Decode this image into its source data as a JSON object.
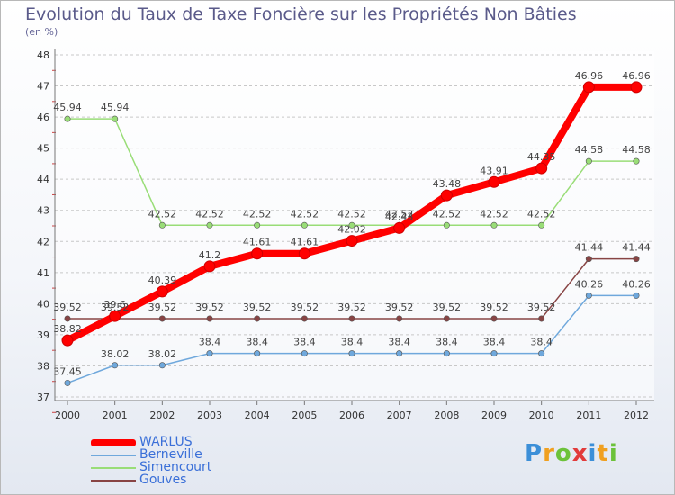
{
  "chart_data": {
    "type": "line",
    "title": "Evolution du Taux de Taxe Foncière sur les Propriétés Non Bâties",
    "ylabel": "(en %)",
    "xlabel": "",
    "categories": [
      "2000",
      "2001",
      "2002",
      "2003",
      "2004",
      "2005",
      "2006",
      "2007",
      "2008",
      "2009",
      "2010",
      "2011",
      "2012"
    ],
    "ylim": [
      37,
      48
    ],
    "yticks": [
      37,
      38,
      39,
      40,
      41,
      42,
      43,
      44,
      45,
      46,
      47,
      48
    ],
    "grid": "horizontal dashed",
    "legend_position": "bottom-left",
    "series": [
      {
        "name": "WARLUS",
        "color": "#ff0000",
        "labels": [
          "38.82",
          "39.6",
          "40.39",
          "41.2",
          "41.61",
          "41.61",
          "42.02",
          "42.43",
          "43.48",
          "43.91",
          "44.35",
          "46.96",
          "46.96"
        ],
        "values": [
          38.82,
          39.6,
          40.39,
          41.2,
          41.61,
          41.61,
          42.02,
          42.43,
          43.48,
          43.91,
          44.35,
          46.96,
          46.96
        ]
      },
      {
        "name": "Berneville",
        "color": "#6fa8dc",
        "labels": [
          "37.45",
          "38.02",
          "38.02",
          "38.4",
          "38.4",
          "38.4",
          "38.4",
          "38.4",
          "38.4",
          "38.4",
          "38.4",
          "40.26",
          "40.26"
        ],
        "values": [
          37.45,
          38.02,
          38.02,
          38.4,
          38.4,
          38.4,
          38.4,
          38.4,
          38.4,
          38.4,
          38.4,
          40.26,
          40.26
        ]
      },
      {
        "name": "Simencourt",
        "color": "#99dd77",
        "labels": [
          "45.94",
          "45.94",
          "42.52",
          "42.52",
          "42.52",
          "42.52",
          "42.52",
          "42.52",
          "42.52",
          "42.52",
          "42.52",
          "44.58",
          "44.58"
        ],
        "values": [
          45.94,
          45.94,
          42.52,
          42.52,
          42.52,
          42.52,
          42.52,
          42.52,
          42.52,
          42.52,
          42.52,
          44.58,
          44.58
        ]
      },
      {
        "name": "Gouves",
        "color": "#884444",
        "labels": [
          "39.52",
          "39.52",
          "39.52",
          "39.52",
          "39.52",
          "39.52",
          "39.52",
          "39.52",
          "39.52",
          "39.52",
          "39.52",
          "41.44",
          "41.44"
        ],
        "values": [
          39.52,
          39.52,
          39.52,
          39.52,
          39.52,
          39.52,
          39.52,
          39.52,
          39.52,
          39.52,
          39.52,
          41.44,
          41.44
        ]
      }
    ]
  },
  "legend": {
    "items": [
      {
        "label": "WARLUS",
        "color": "#ff0000"
      },
      {
        "label": "Berneville",
        "color": "#6fa8dc"
      },
      {
        "label": "Simencourt",
        "color": "#99dd77"
      },
      {
        "label": "Gouves",
        "color": "#884444"
      }
    ]
  },
  "brand": {
    "logo_letters": [
      "P",
      "r",
      "o",
      "x",
      "i",
      "t",
      "i"
    ],
    "logo_colors": [
      "#3c8fd8",
      "#f0a020",
      "#6cc23a",
      "#e23b3b",
      "#3c8fd8",
      "#f0a020",
      "#6cc23a"
    ]
  }
}
